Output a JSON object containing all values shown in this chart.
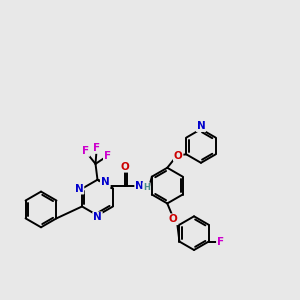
{
  "bg_color": "#e8e8e8",
  "bond_color": "#000000",
  "bond_width": 1.4,
  "atom_colors": {
    "N": "#0000cc",
    "O": "#cc0000",
    "F": "#cc00cc",
    "H": "#4a8a8a"
  },
  "figsize": [
    3.0,
    3.0
  ],
  "dpi": 100
}
